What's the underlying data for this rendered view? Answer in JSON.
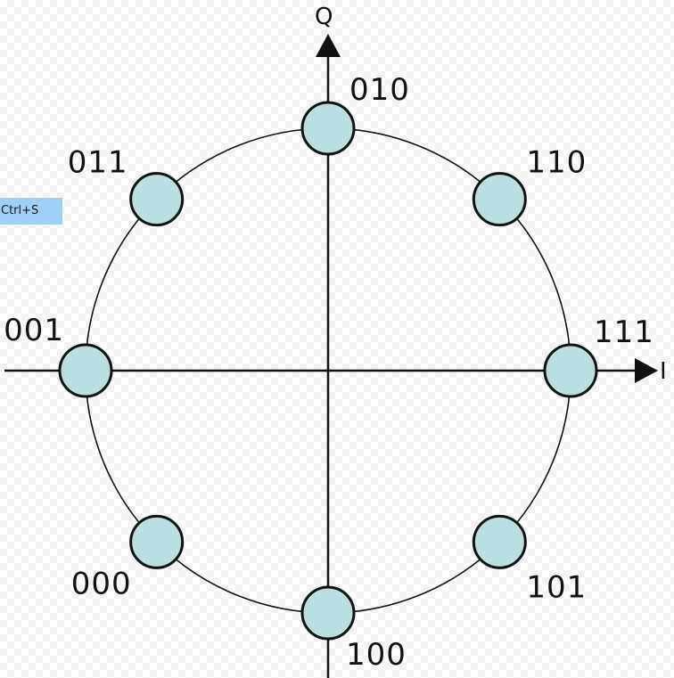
{
  "axes": {
    "q_label": "Q",
    "i_label": "I"
  },
  "constellation": [
    {
      "bits": "010",
      "angle_deg": 90
    },
    {
      "bits": "110",
      "angle_deg": 45
    },
    {
      "bits": "111",
      "angle_deg": 0
    },
    {
      "bits": "101",
      "angle_deg": -45
    },
    {
      "bits": "100",
      "angle_deg": -90
    },
    {
      "bits": "000",
      "angle_deg": -135
    },
    {
      "bits": "001",
      "angle_deg": 180
    },
    {
      "bits": "011",
      "angle_deg": 135
    }
  ],
  "colors": {
    "point_fill": "#b9dfe2",
    "stroke": "#111111"
  },
  "tooltip": {
    "text": "Ctrl+S"
  }
}
